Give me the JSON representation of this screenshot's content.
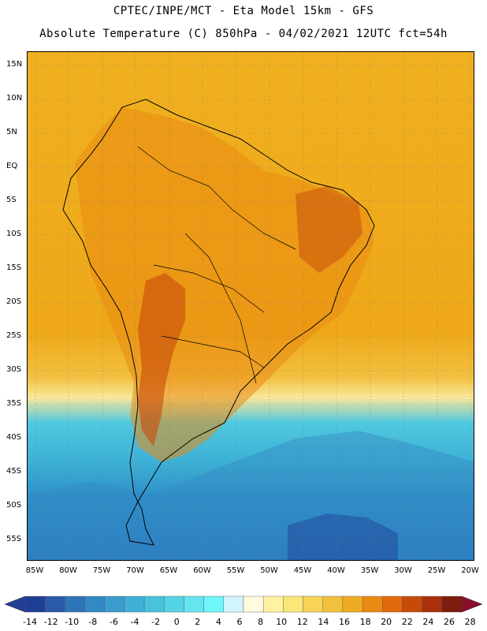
{
  "header": {
    "line1": "CPTEC/INPE/MCT -  Eta Model 15km - GFS",
    "line2": "Absolute Temperature (C) 850hPa - 04/02/2021 12UTC fct=54h"
  },
  "map": {
    "lat_labels": [
      "15N",
      "10N",
      "5N",
      "EQ",
      "5S",
      "10S",
      "15S",
      "20S",
      "25S",
      "30S",
      "35S",
      "40S",
      "45S",
      "50S",
      "55S"
    ],
    "lon_labels": [
      "85W",
      "80W",
      "75W",
      "70W",
      "65W",
      "60W",
      "55W",
      "50W",
      "45W",
      "40W",
      "35W",
      "30W",
      "25W",
      "20W"
    ],
    "grid": "dotted",
    "coastlines": true
  },
  "colorbar": {
    "labels": [
      "-14",
      "-12",
      "-10",
      "-8",
      "-6",
      "-4",
      "-2",
      "0",
      "2",
      "4",
      "6",
      "8",
      "10",
      "12",
      "14",
      "16",
      "18",
      "20",
      "22",
      "24",
      "26",
      "28"
    ],
    "colors": [
      "#1e3f94",
      "#2a5aa8",
      "#2e74b8",
      "#3389c4",
      "#3a9ccd",
      "#3fb0d6",
      "#48c2de",
      "#55d4e6",
      "#64e6f0",
      "#6ff6fa",
      "#d2f4fc",
      "#fffae0",
      "#fdf3a0",
      "#fbe678",
      "#f7d458",
      "#f2c03c",
      "#efac22",
      "#e98a12",
      "#e06a0c",
      "#c84a0a",
      "#a8300c",
      "#7c1d10"
    ]
  }
}
